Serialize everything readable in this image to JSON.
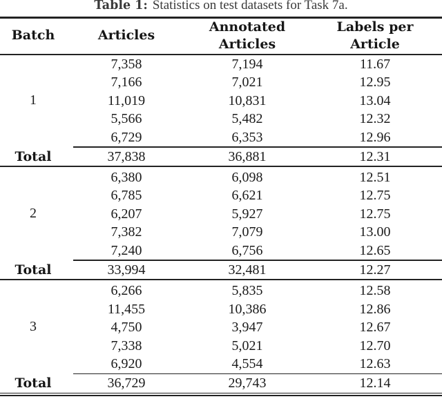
{
  "caption": {
    "prefix": "Table 1:",
    "text": "Statistics on test datasets for Task 7a."
  },
  "header": {
    "col1": "Batch",
    "col2": "Articles",
    "col3_line1": "Annotated",
    "col3_line2": "Articles",
    "col4_line1": "Labels per",
    "col4_line2": "Article"
  },
  "total_label": "Total",
  "table": {
    "batches": [
      {
        "batch": "1",
        "rows": [
          [
            "7,358",
            "7,194",
            "11.67"
          ],
          [
            "7,166",
            "7,021",
            "12.95"
          ],
          [
            "11,019",
            "10,831",
            "13.04"
          ],
          [
            "5,566",
            "5,482",
            "12.32"
          ],
          [
            "6,729",
            "6,353",
            "12.96"
          ]
        ],
        "total": [
          "37,838",
          "36,881",
          "12.31"
        ]
      },
      {
        "batch": "2",
        "rows": [
          [
            "6,380",
            "6,098",
            "12.51"
          ],
          [
            "6,785",
            "6,621",
            "12.75"
          ],
          [
            "6,207",
            "5,927",
            "12.75"
          ],
          [
            "7,382",
            "7,079",
            "13.00"
          ],
          [
            "7,240",
            "6,756",
            "12.65"
          ]
        ],
        "total": [
          "33,994",
          "32,481",
          "12.27"
        ]
      },
      {
        "batch": "3",
        "rows": [
          [
            "6,266",
            "5,835",
            "12.58"
          ],
          [
            "11,455",
            "10,386",
            "12.86"
          ],
          [
            "4,750",
            "3,947",
            "12.67"
          ],
          [
            "7,338",
            "5,021",
            "12.70"
          ],
          [
            "6,920",
            "4,554",
            "12.63"
          ]
        ],
        "total": [
          "36,729",
          "29,743",
          "12.14"
        ]
      }
    ]
  },
  "chart_data": {
    "type": "table",
    "title": "Table 1: Statistics on test datasets for Task 7a.",
    "columns": [
      "Batch",
      "Articles",
      "Annotated Articles",
      "Labels per Article"
    ],
    "rows": [
      [
        "1",
        7358,
        7194,
        11.67
      ],
      [
        "1",
        7166,
        7021,
        12.95
      ],
      [
        "1",
        11019,
        10831,
        13.04
      ],
      [
        "1",
        5566,
        5482,
        12.32
      ],
      [
        "1",
        6729,
        6353,
        12.96
      ],
      [
        "1 Total",
        37838,
        36881,
        12.31
      ],
      [
        "2",
        6380,
        6098,
        12.51
      ],
      [
        "2",
        6785,
        6621,
        12.75
      ],
      [
        "2",
        6207,
        5927,
        12.75
      ],
      [
        "2",
        7382,
        7079,
        13.0
      ],
      [
        "2",
        7240,
        6756,
        12.65
      ],
      [
        "2 Total",
        33994,
        32481,
        12.27
      ],
      [
        "3",
        6266,
        5835,
        12.58
      ],
      [
        "3",
        11455,
        10386,
        12.86
      ],
      [
        "3",
        4750,
        3947,
        12.67
      ],
      [
        "3",
        7338,
        5021,
        12.7
      ],
      [
        "3",
        6920,
        4554,
        12.63
      ],
      [
        "3 Total",
        36729,
        29743,
        12.14
      ]
    ]
  },
  "colors": {
    "rule": "#222222",
    "text": "#1b1b1b",
    "background": "#ffffff"
  }
}
